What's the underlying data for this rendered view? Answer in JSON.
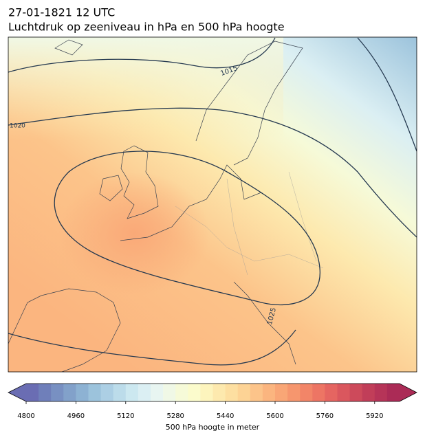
{
  "header": {
    "date": "27-01-1821 12 UTC",
    "title": "Luchtdruk op zeeniveau in hPa en 500 hPa hoogte"
  },
  "contour_labels": [
    "1015",
    "1020",
    "1025"
  ],
  "colorbar": {
    "label": "500 hPa hoogte in meter",
    "lim": [
      4800,
      6000
    ],
    "ticks": [
      4800,
      4960,
      5120,
      5280,
      5440,
      5600,
      5760,
      5920
    ],
    "colors": [
      "#6a6db3",
      "#6f7fba",
      "#7890c2",
      "#82a1ca",
      "#8db2d3",
      "#9cc3dc",
      "#accfe4",
      "#bcdcea",
      "#cce8f0",
      "#dbeff3",
      "#e8f5f1",
      "#f0f8e6",
      "#f6fad8",
      "#fbfbcc",
      "#fdf4bd",
      "#fde9ae",
      "#fddfa1",
      "#fdd395",
      "#fcc48a",
      "#fbb57f",
      "#f9a676",
      "#f6966e",
      "#f28568",
      "#ed7564",
      "#e56561",
      "#da575e",
      "#cd4a5b",
      "#c13e59",
      "#b63458",
      "#ab2b56"
    ]
  }
}
